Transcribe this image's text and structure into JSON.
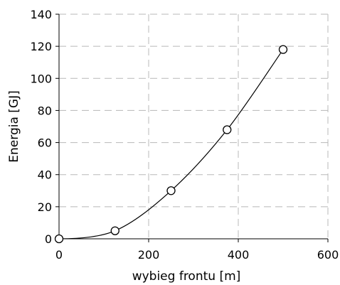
{
  "chart_data": {
    "type": "scatter",
    "xlabel": "wybieg frontu [m]",
    "ylabel": "Energia [GJ]",
    "xlim": [
      0,
      600
    ],
    "ylim": [
      0,
      140
    ],
    "x_ticks": [
      0,
      200,
      400,
      600
    ],
    "y_ticks": [
      0,
      20,
      40,
      60,
      80,
      100,
      120,
      140
    ],
    "grid": true,
    "series": [
      {
        "points": [
          {
            "x": 0,
            "y": 0
          },
          {
            "x": 125,
            "y": 5
          },
          {
            "x": 250,
            "y": 30
          },
          {
            "x": 375,
            "y": 68
          },
          {
            "x": 500,
            "y": 118
          }
        ],
        "marker": "open-circle",
        "fit_line": true
      }
    ],
    "colors": {
      "line": "#000000",
      "grid": "#b8b8b8"
    }
  }
}
